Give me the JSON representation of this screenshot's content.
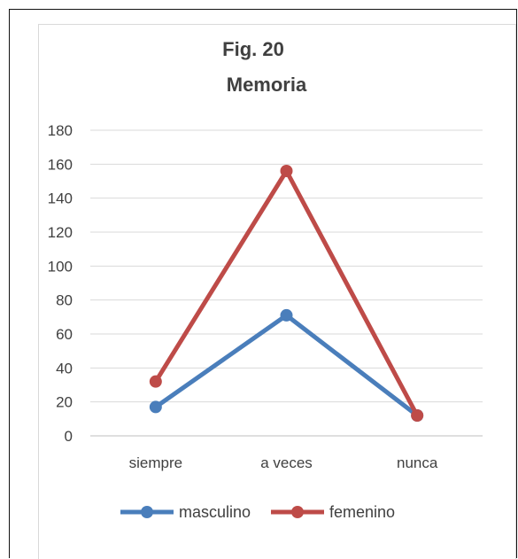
{
  "chart_data": {
    "type": "line",
    "title": "Fig. 20",
    "subtitle": "Memoria",
    "categories": [
      "siempre",
      "a veces",
      "nunca"
    ],
    "yticks": [
      "0",
      "20",
      "40",
      "60",
      "80",
      "100",
      "120",
      "140",
      "160",
      "180"
    ],
    "ylim": [
      0,
      180
    ],
    "grid": true,
    "legend_position": "bottom",
    "series": [
      {
        "name": "masculino",
        "values": [
          17,
          71,
          12
        ],
        "color": "#4a7ebb"
      },
      {
        "name": "femenino",
        "values": [
          32,
          156,
          12
        ],
        "color": "#be4b48"
      }
    ]
  }
}
